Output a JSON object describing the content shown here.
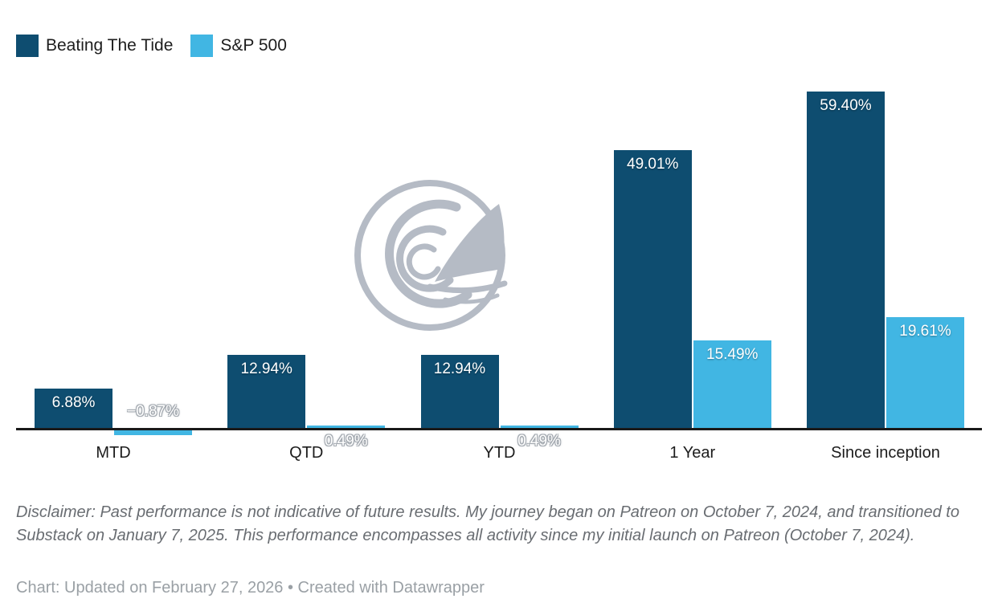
{
  "chart_data": {
    "type": "bar",
    "categories": [
      "MTD",
      "QTD",
      "YTD",
      "1 Year",
      "Since inception"
    ],
    "series": [
      {
        "name": "Beating The Tide",
        "color": "#0e4d70",
        "values": [
          6.88,
          12.94,
          12.94,
          49.01,
          59.4
        ],
        "labels": [
          "6.88%",
          "12.94%",
          "12.94%",
          "49.01%",
          "59.40%"
        ]
      },
      {
        "name": "S&P 500",
        "color": "#41b6e3",
        "values": [
          -0.87,
          0.49,
          0.49,
          15.49,
          19.61
        ],
        "labels": [
          "−0.87%",
          "0.49%",
          "0.49%",
          "15.49%",
          "19.61%"
        ]
      }
    ],
    "title": "",
    "xlabel": "",
    "ylabel": "",
    "ylim": [
      -2,
      63
    ],
    "grid": false,
    "legend_position": "top-left",
    "axis_color": "#1a1a1a",
    "value_label_color": "#ffffff"
  },
  "legend": {
    "items": [
      {
        "label": "Beating The Tide",
        "color": "#0e4d70"
      },
      {
        "label": "S&P 500",
        "color": "#41b6e3"
      }
    ]
  },
  "watermark": {
    "name": "wave-shark-logo",
    "color": "#b5bbc5"
  },
  "disclaimer": "Disclaimer: Past performance is not indicative of future results. My journey began on Patreon on October 7, 2024, and transitioned to Substack on January 7, 2025. This performance encompasses all activity since my initial launch on Patreon (October 7, 2024).",
  "footer": "Chart: Updated on February 27, 2026 • Created with Datawrapper"
}
